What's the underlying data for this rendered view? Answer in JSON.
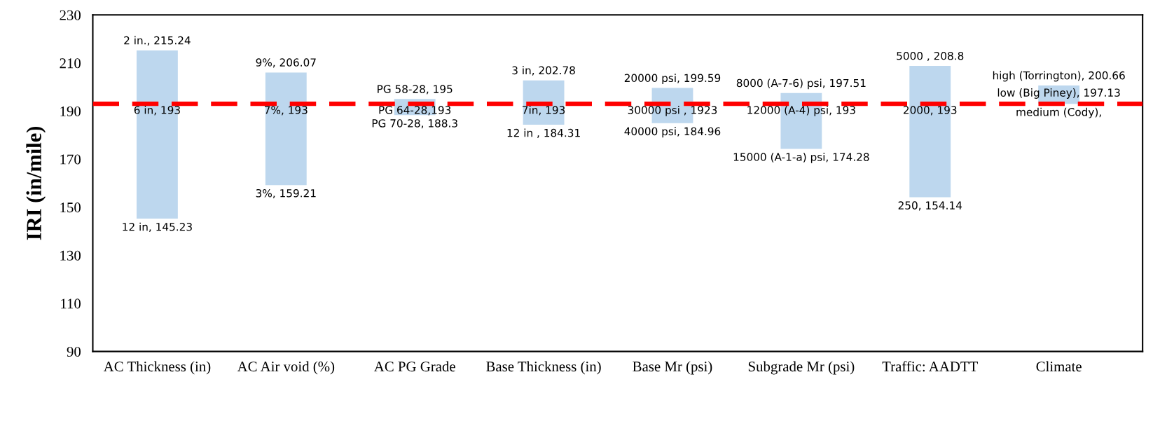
{
  "chart_data": {
    "type": "bar",
    "ylabel": "IRI (in/mile)",
    "categories": [
      "AC Thickness (in)",
      "AC Air void (%)",
      "AC PG Grade",
      "Base Thickness (in)",
      "Base Mr (psi)",
      "Subgrade Mr (psi)",
      "Traffic: AADTT",
      "Climate"
    ],
    "base": [
      145.23,
      159.21,
      188.3,
      184.31,
      184.96,
      174.28,
      154.14,
      193
    ],
    "values": [
      70.01,
      46.86,
      6.7,
      18.47,
      14.63,
      23.23,
      54.66,
      7.66
    ],
    "color": "#bdd7ee",
    "ylim": [
      90,
      230
    ],
    "yticks": [
      90,
      110,
      130,
      150,
      170,
      190,
      210,
      230
    ],
    "grid": false,
    "legend": false,
    "ref_lines": [
      {
        "axis": "y",
        "value": 193,
        "color": "#ff0000",
        "line_style": "dashed"
      }
    ],
    "annotations": [
      {
        "text": "2 in., 215.24",
        "x": "AC Thickness (in)",
        "y": 215.24
      },
      {
        "text": "6 in, 193",
        "x": "AC Thickness (in)",
        "y": 193
      },
      {
        "text": "12 in, 145.23",
        "x": "AC Thickness (in)",
        "y": 145.23
      },
      {
        "text": "9%, 206.07",
        "x": "AC Air void (%)",
        "y": 206.07
      },
      {
        "text": "7%, 193",
        "x": "AC Air void (%)",
        "y": 193
      },
      {
        "text": "3%, 159.21",
        "x": "AC Air void (%)",
        "y": 159.21
      },
      {
        "text": "PG 58-28, 195",
        "x": "AC PG Grade",
        "y": 195
      },
      {
        "text": "PG 64-28,193",
        "x": "AC PG Grade",
        "y": 193
      },
      {
        "text": "PG 70-28, 188.3",
        "x": "AC PG Grade",
        "y": 188.3
      },
      {
        "text": "3 in, 202.78",
        "x": "Base Thickness (in)",
        "y": 202.78
      },
      {
        "text": "7in, 193",
        "x": "Base Thickness (in)",
        "y": 193
      },
      {
        "text": "12 in , 184.31",
        "x": "Base Thickness (in)",
        "y": 184.31
      },
      {
        "text": "20000 psi, 199.59",
        "x": "Base Mr (psi)",
        "y": 199.59
      },
      {
        "text": "30000 psi , 1923",
        "x": "Base Mr (psi)",
        "y": 193
      },
      {
        "text": "40000 psi, 184.96",
        "x": "Base Mr (psi)",
        "y": 184.96
      },
      {
        "text": "8000 (A-7-6) psi, 197.51",
        "x": "Subgrade Mr (psi)",
        "y": 197.51
      },
      {
        "text": "12000 (A-4) psi, 193",
        "x": "Subgrade Mr (psi)",
        "y": 193
      },
      {
        "text": "15000 (A-1-a) psi, 174.28",
        "x": "Subgrade Mr (psi)",
        "y": 174.28
      },
      {
        "text": "5000 , 208.8",
        "x": "Traffic: AADTT",
        "y": 208.8
      },
      {
        "text": "2000, 193",
        "x": "Traffic: AADTT",
        "y": 193
      },
      {
        "text": "250, 154.14",
        "x": "Traffic: AADTT",
        "y": 154.14
      },
      {
        "text": "high (Torrington), 200.66",
        "x": "Climate",
        "y": 200.66
      },
      "low (Big Piney), 197.13",
      {
        "text": "medium (Cody),",
        "x": "Climate",
        "y": 193
      }
    ]
  }
}
